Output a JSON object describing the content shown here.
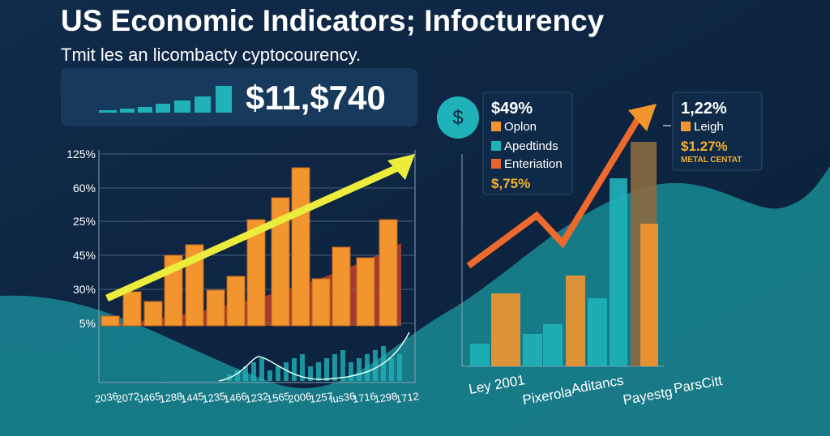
{
  "header": {
    "title": "US Economic Indicators; Infocturency",
    "subtitle": "Tmit les an licombacty cyptocourency."
  },
  "headline": {
    "value": "$11,$740"
  },
  "left_chart": {
    "y_labels": [
      "125%",
      "60%",
      "25%",
      "45%",
      "30%",
      "5%"
    ],
    "x_labels": [
      "2036",
      "2072",
      "J465",
      "1288",
      "1445",
      "1235",
      "1466",
      "1232",
      "1565",
      "2006",
      "1257",
      "lus36",
      "1716",
      "1298",
      "1712"
    ]
  },
  "middle_legend": {
    "value": "$49%",
    "items": [
      "Oplon",
      "Apedtinds",
      "Enteriation"
    ],
    "footer": "$,75%"
  },
  "right_legend": {
    "value": "1,22%",
    "item": "Leigh",
    "amount": "$1.27%",
    "caption": "METAL CENTAT"
  },
  "right_chart": {
    "x_labels": [
      "Ley 2001",
      "Pixerola",
      "Aditancs",
      "Payestg",
      "ParsCitt"
    ]
  }
}
